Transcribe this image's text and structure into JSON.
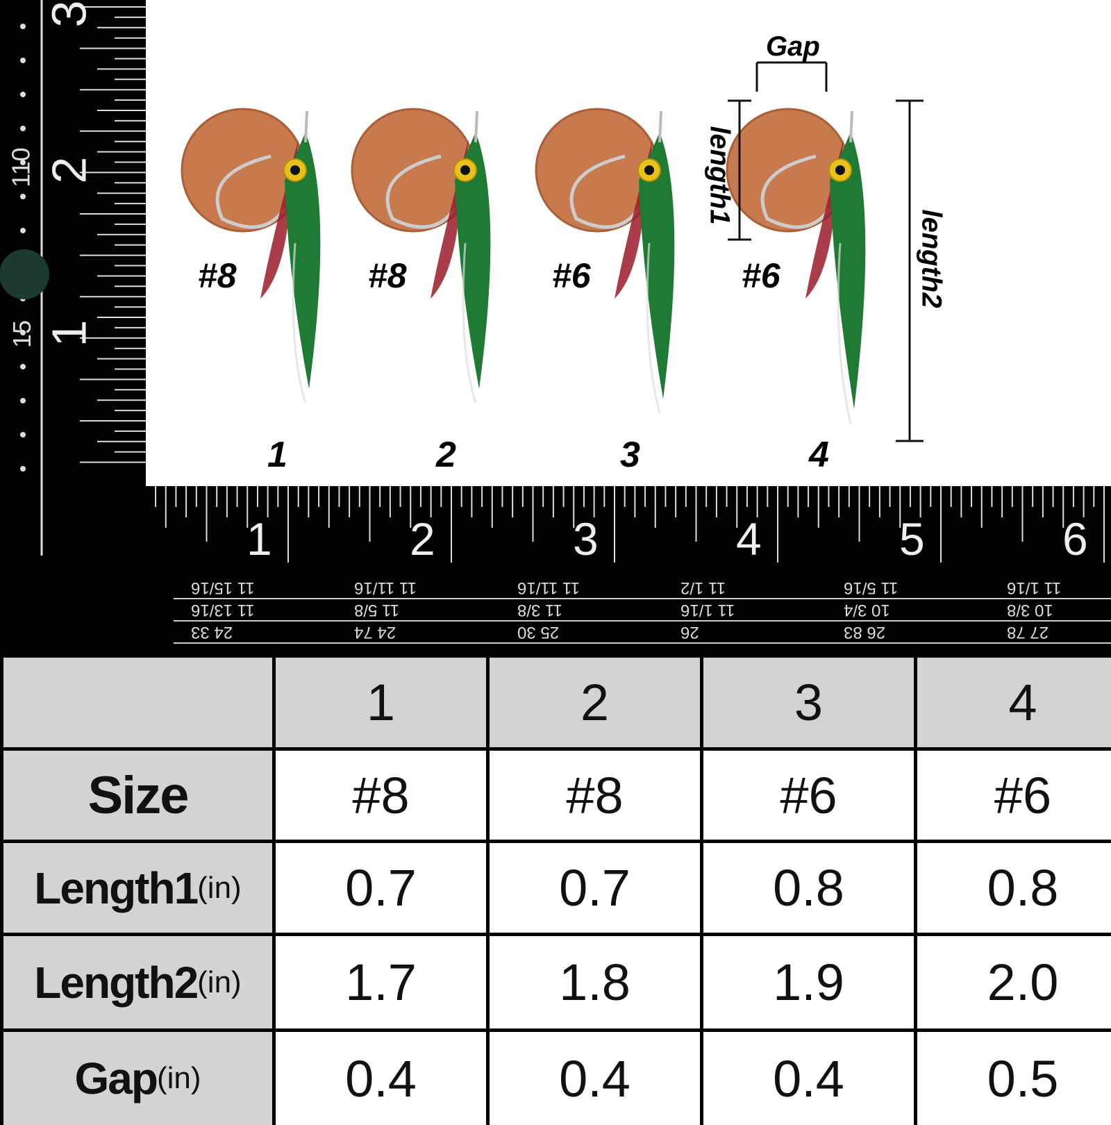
{
  "photo": {
    "flies": [
      {
        "number": "1",
        "size": "#8"
      },
      {
        "number": "2",
        "size": "#8"
      },
      {
        "number": "3",
        "size": "#6"
      },
      {
        "number": "4",
        "size": "#6"
      }
    ],
    "dimension_labels": {
      "gap": "Gap",
      "length1": "length1",
      "length2": "length2"
    }
  },
  "vertical_ruler": {
    "inch_labels": [
      "3",
      "2",
      "1"
    ],
    "cm_labels": [
      "110",
      "15"
    ]
  },
  "horizontal_ruler": {
    "inch_labels": [
      "1",
      "2",
      "3",
      "4",
      "5",
      "6"
    ],
    "rows": [
      [
        "11 15/16",
        "11 11/16",
        "11 11/16",
        "11 1/2",
        "11 5/16",
        "11 1/16"
      ],
      [
        "11 13/16",
        "11 5/8",
        "11 3/8",
        "11 1/16",
        "10 3/4",
        "10 3/8"
      ],
      [
        "24 33",
        "24 74",
        "25 30",
        "26",
        "26 83",
        "27 78"
      ]
    ]
  },
  "table": {
    "columns": [
      "",
      "1",
      "2",
      "3",
      "4"
    ],
    "rows": [
      {
        "label": "Size",
        "unit": "",
        "values": [
          "#8",
          "#8",
          "#6",
          "#6"
        ]
      },
      {
        "label": "Length1",
        "unit": "(in)",
        "values": [
          "0.7",
          "0.7",
          "0.8",
          "0.8"
        ]
      },
      {
        "label": "Length2",
        "unit": "(in)",
        "values": [
          "1.7",
          "1.8",
          "1.9",
          "2.0"
        ]
      },
      {
        "label": "Gap",
        "unit": "(in)",
        "values": [
          "0.4",
          "0.4",
          "0.4",
          "0.5"
        ]
      }
    ]
  },
  "colors": {
    "penny": "#c67a4e",
    "green": "#1f7a33",
    "red": "#9b1b2a",
    "eye": "#e8c21a",
    "header_gray": "#d3d3d3"
  }
}
